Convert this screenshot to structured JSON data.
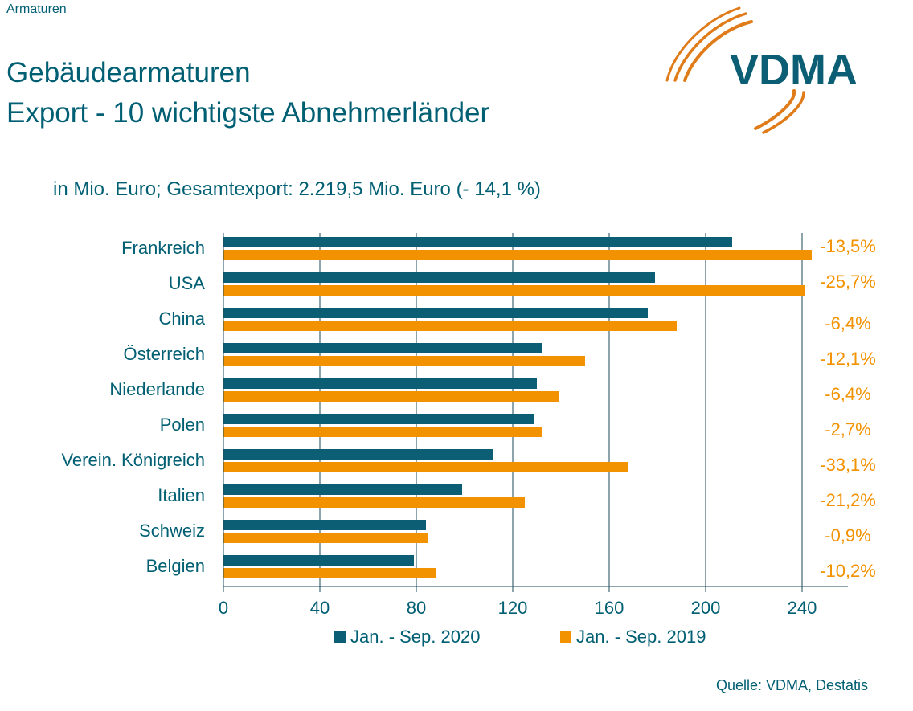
{
  "header": {
    "topline": "Armaturen",
    "title_line1": "Gebäudearmaturen",
    "title_line2": "Export - 10 wichtigste Abnehmerländer",
    "logo_text": "VDMA"
  },
  "subtitle": "in Mio. Euro; Gesamtexport: 2.219,5 Mio. Euro (- 14,1 %)",
  "source": "Quelle: VDMA, Destatis",
  "colors": {
    "series2020": "#0b5e73",
    "series2019": "#f39200",
    "grid": "#1c4a59",
    "text": "#005f73"
  },
  "chart_data": {
    "type": "bar",
    "orientation": "horizontal",
    "categories": [
      "Frankreich",
      "USA",
      "China",
      "Österreich",
      "Niederlande",
      "Polen",
      "Verein. Königreich",
      "Italien",
      "Schweiz",
      "Belgien"
    ],
    "series": [
      {
        "name": "Jan. - Sep. 2020",
        "values": [
          211,
          179,
          176,
          132,
          130,
          129,
          112,
          99,
          84,
          79
        ]
      },
      {
        "name": "Jan. - Sep. 2019",
        "values": [
          244,
          241,
          188,
          150,
          139,
          132,
          168,
          125,
          85,
          88
        ]
      }
    ],
    "changes": [
      "-13,5%",
      "-25,7%",
      "-6,4%",
      "-12,1%",
      "-6,4%",
      "-2,7%",
      "-33,1%",
      "-21,2%",
      "-0,9%",
      "-10,2%"
    ],
    "xticks": [
      "0",
      "40",
      "80",
      "120",
      "160",
      "200",
      "240"
    ],
    "xlim": [
      0,
      260
    ],
    "grid": "vertical",
    "legend_position": "bottom"
  }
}
